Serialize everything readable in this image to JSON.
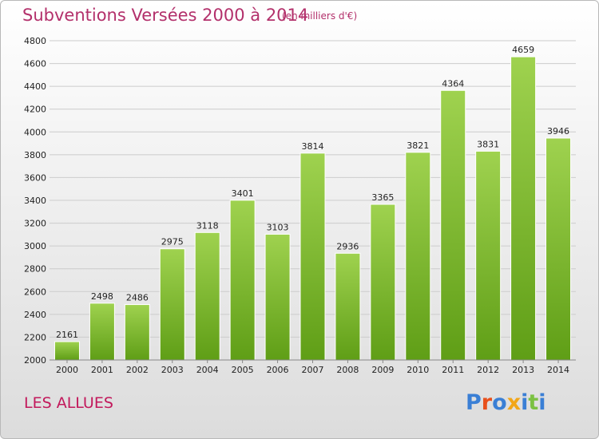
{
  "header": {
    "title": "Subventions Versées 2000 à 2014",
    "subtitle": "(en milliers d'€)"
  },
  "footer": {
    "commune": "LES ALLUES",
    "logo_text": "Proxiti",
    "logo_colors": [
      "#3a7fd5",
      "#e8501c",
      "#3a7fd5",
      "#f2a618",
      "#3a7fd5",
      "#7bc142",
      "#3a7fd5"
    ]
  },
  "colors": {
    "bar_top": "#9fd24f",
    "bar_bottom": "#5f9e16",
    "grid": "#cccccc",
    "axis_text": "#222222",
    "title": "#b3306b"
  },
  "chart_data": {
    "type": "bar",
    "categories": [
      "2000",
      "2001",
      "2002",
      "2003",
      "2004",
      "2005",
      "2006",
      "2007",
      "2008",
      "2009",
      "2010",
      "2011",
      "2012",
      "2013",
      "2014"
    ],
    "values": [
      2161,
      2498,
      2486,
      2975,
      3118,
      3401,
      3103,
      3814,
      2936,
      3365,
      3821,
      4364,
      3831,
      4659,
      3946
    ],
    "ylim": [
      2000,
      4800
    ],
    "yticks": [
      2000,
      2200,
      2400,
      2600,
      2800,
      3000,
      3200,
      3400,
      3600,
      3800,
      4000,
      4200,
      4400,
      4600,
      4800
    ],
    "grid": true,
    "data_labels": true
  }
}
